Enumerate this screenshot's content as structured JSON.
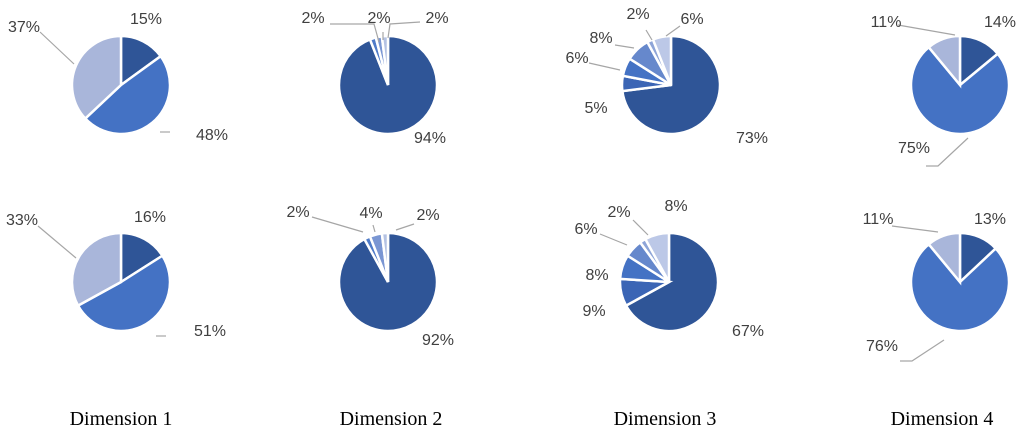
{
  "chart_data": [
    {
      "type": "pie",
      "dimension": "Dimension 1",
      "row": 1,
      "values": [
        15,
        48,
        37
      ],
      "labels": [
        "15%",
        "48%",
        "37%"
      ]
    },
    {
      "type": "pie",
      "dimension": "Dimension 2",
      "row": 1,
      "values": [
        94,
        2,
        2,
        2
      ],
      "labels": [
        "94%",
        "2%",
        "2%",
        "2%"
      ]
    },
    {
      "type": "pie",
      "dimension": "Dimension 3",
      "row": 1,
      "values": [
        73,
        5,
        6,
        8,
        2,
        6
      ],
      "labels": [
        "73%",
        "5%",
        "6%",
        "8%",
        "2%",
        "6%"
      ]
    },
    {
      "type": "pie",
      "dimension": "Dimension 4",
      "row": 1,
      "values": [
        14,
        75,
        11
      ],
      "labels": [
        "14%",
        "75%",
        "11%"
      ]
    },
    {
      "type": "pie",
      "dimension": "Dimension 1",
      "row": 2,
      "values": [
        16,
        51,
        33
      ],
      "labels": [
        "16%",
        "51%",
        "33%"
      ]
    },
    {
      "type": "pie",
      "dimension": "Dimension 2",
      "row": 2,
      "values": [
        92,
        2,
        4,
        2
      ],
      "labels": [
        "92%",
        "2%",
        "4%",
        "2%"
      ]
    },
    {
      "type": "pie",
      "dimension": "Dimension 3",
      "row": 2,
      "values": [
        67,
        9,
        8,
        6,
        2,
        8
      ],
      "labels": [
        "67%",
        "9%",
        "8%",
        "6%",
        "2%",
        "8%"
      ]
    },
    {
      "type": "pie",
      "dimension": "Dimension 4",
      "row": 2,
      "values": [
        13,
        76,
        11
      ],
      "labels": [
        "13%",
        "76%",
        "11%"
      ]
    }
  ],
  "dimension_labels": [
    "Dimension 1",
    "Dimension 2",
    "Dimension 3",
    "Dimension 4"
  ],
  "colors": {
    "three_slice": [
      "#2F5597",
      "#4472C4",
      "#A9B6DA"
    ],
    "four_slice": [
      "#2F5597",
      "#4F7BC8",
      "#7A96D3",
      "#B4C2E3"
    ],
    "six_slice": [
      "#2F5597",
      "#3B65B5",
      "#4472C4",
      "#6688CC",
      "#8EA5D8",
      "#BCC8E7"
    ],
    "label_text": "#404040",
    "leader_line": "#A6A6A6"
  }
}
